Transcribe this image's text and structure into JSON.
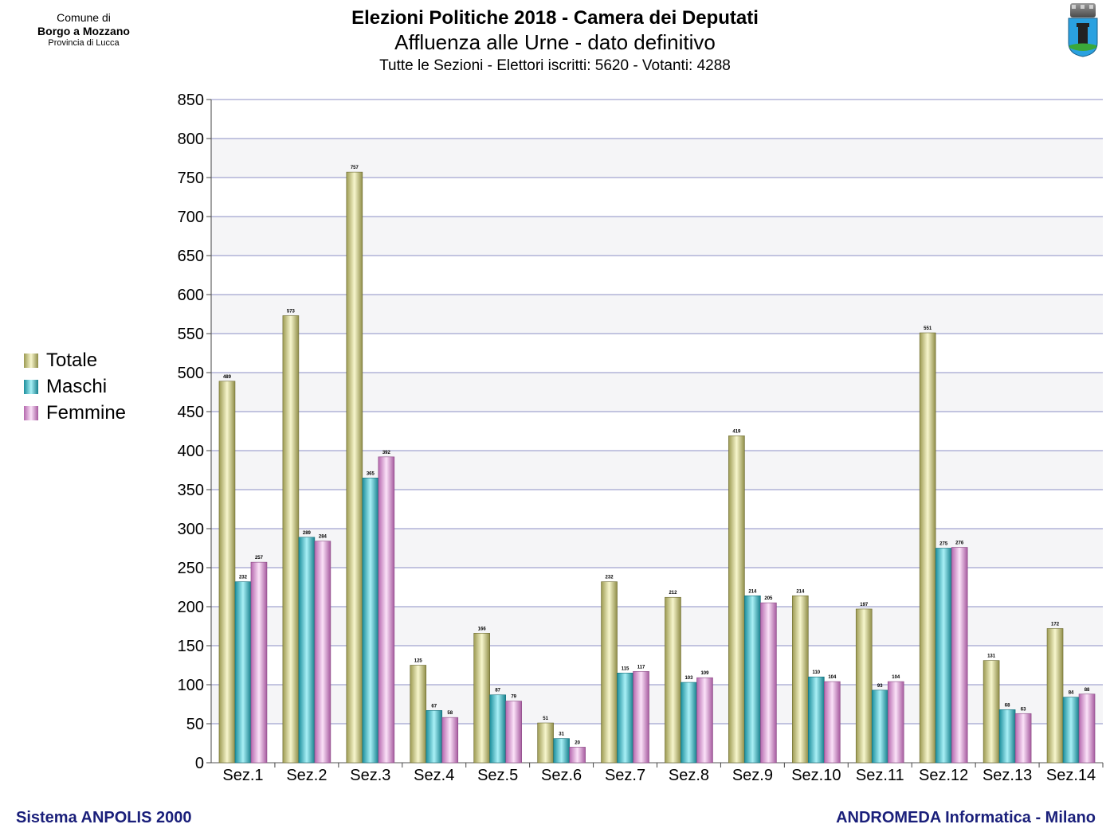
{
  "header": {
    "comune_line1": "Comune di",
    "comune_name": "Borgo a Mozzano",
    "provincia": "Provincia di Lucca"
  },
  "footer": {
    "left": "Sistema ANPOLIS 2000",
    "right": "ANDROMEDA Informatica - Milano"
  },
  "colors": {
    "totale": "#d6d48a",
    "maschi": "#3cc4d4",
    "femmine": "#e7a6e0",
    "grid": "#8c8fc4",
    "band": "#f5f5f7",
    "footer": "#1a1f7a"
  },
  "chart_data": {
    "type": "bar",
    "title": "Elezioni Politiche 2018 - Camera dei Deputati",
    "subtitle": "Affluenza alle Urne - dato definitivo",
    "subtitle2": "Tutte le Sezioni - Elettori iscritti: 5620 - Votanti: 4288",
    "categories": [
      "Sez.1",
      "Sez.2",
      "Sez.3",
      "Sez.4",
      "Sez.5",
      "Sez.6",
      "Sez.7",
      "Sez.8",
      "Sez.9",
      "Sez.10",
      "Sez.11",
      "Sez.12",
      "Sez.13",
      "Sez.14"
    ],
    "series": [
      {
        "name": "Totale",
        "values": [
          489,
          573,
          757,
          125,
          166,
          51,
          232,
          212,
          419,
          214,
          197,
          551,
          131,
          172
        ]
      },
      {
        "name": "Maschi",
        "values": [
          232,
          289,
          365,
          67,
          87,
          31,
          115,
          103,
          214,
          110,
          93,
          275,
          68,
          84
        ]
      },
      {
        "name": "Femmine",
        "values": [
          257,
          284,
          392,
          58,
          79,
          20,
          117,
          109,
          205,
          104,
          104,
          276,
          63,
          88
        ]
      }
    ],
    "yticks": [
      0,
      50,
      100,
      150,
      200,
      250,
      300,
      350,
      400,
      450,
      500,
      550,
      600,
      650,
      700,
      750,
      800,
      850
    ],
    "ylim": [
      0,
      850
    ],
    "grid": true,
    "legend_position": "left"
  }
}
